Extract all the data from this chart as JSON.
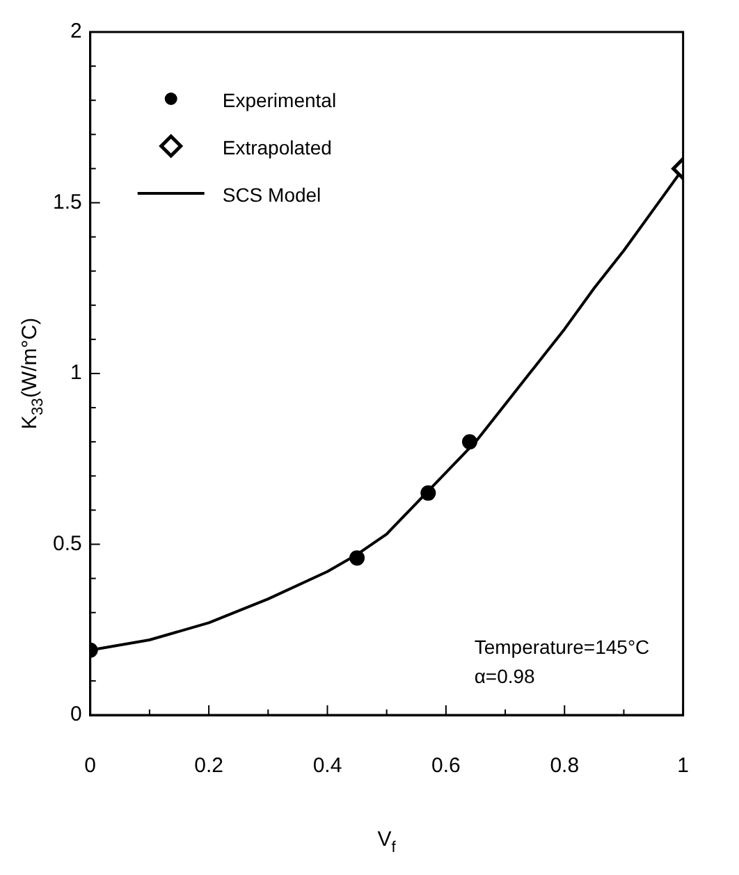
{
  "chart_data": {
    "type": "scatter",
    "xlabel": "V$_{f}$",
    "ylabel": "K$_{33}$(W/m°C)",
    "xlim": [
      0,
      1
    ],
    "ylim": [
      0,
      2
    ],
    "xticks": [
      0,
      {
        "value": 0.1,
        "label": null
      },
      0.2,
      {
        "value": 0.3,
        "label": null
      },
      0.4,
      {
        "value": 0.5,
        "label": null
      },
      0.6,
      {
        "value": 0.7,
        "label": null
      },
      0.8,
      {
        "value": 0.9,
        "label": null
      },
      1
    ],
    "yticks": [
      0,
      {
        "value": 0.1,
        "label": null
      },
      {
        "value": 0.2,
        "label": null
      },
      {
        "value": 0.3,
        "label": null
      },
      {
        "value": 0.4,
        "label": null
      },
      0.5,
      {
        "value": 0.6,
        "label": null
      },
      {
        "value": 0.7,
        "label": null
      },
      {
        "value": 0.8,
        "label": null
      },
      {
        "value": 0.9,
        "label": null
      },
      1,
      {
        "value": 1.1,
        "label": null
      },
      {
        "value": 1.2,
        "label": null
      },
      {
        "value": 1.3,
        "label": null
      },
      {
        "value": 1.4,
        "label": null
      },
      1.5,
      {
        "value": 1.6,
        "label": null
      },
      {
        "value": 1.7,
        "label": null
      },
      {
        "value": 1.8,
        "label": null
      },
      {
        "value": 1.9,
        "label": null
      },
      2
    ],
    "grid": false,
    "legend": "top left",
    "series": [
      {
        "name": "Experimental",
        "type": "scatter",
        "marker": "circle",
        "color": "#000000",
        "x": [
          0,
          0.45,
          0.57,
          0.64
        ],
        "values": [
          0.19,
          0.46,
          0.65,
          0.8
        ]
      },
      {
        "name": "Extrapolated",
        "type": "scatter",
        "marker": "diamond",
        "color": "#000000",
        "x": [
          1
        ],
        "values": [
          1.6
        ]
      },
      {
        "name": "SCS Model",
        "type": "line",
        "marker": "none",
        "line_style": "solid",
        "color": "#000000",
        "x": [
          0,
          0.1,
          0.2,
          0.3,
          0.4,
          0.45,
          0.5,
          0.55,
          0.6,
          0.65,
          0.7,
          0.75,
          0.8,
          0.85,
          0.9,
          0.95,
          1
        ],
        "values": [
          0.19,
          0.22,
          0.27,
          0.34,
          0.42,
          0.47,
          0.53,
          0.62,
          0.71,
          0.8,
          0.91,
          1.02,
          1.13,
          1.25,
          1.36,
          1.48,
          1.6
        ]
      }
    ],
    "annotations": [
      "Temperature=145°C",
      "α=0.98"
    ]
  }
}
